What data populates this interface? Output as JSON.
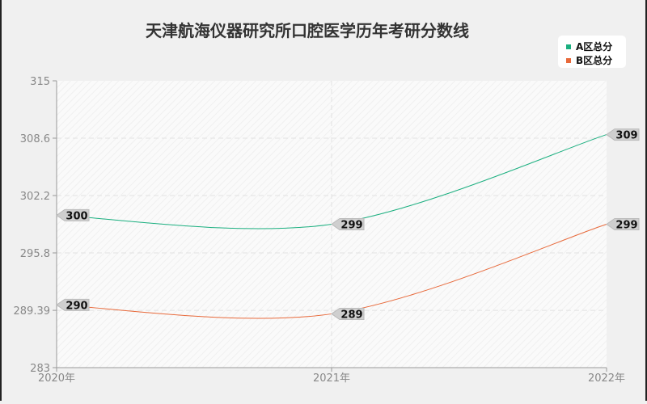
{
  "chart_data": {
    "type": "line",
    "title": "天津航海仪器研究所口腔医学历年考研分数线",
    "categories": [
      "2020年",
      "2021年",
      "2022年"
    ],
    "series": [
      {
        "name": "A区总分",
        "values": [
          300,
          299,
          309
        ],
        "color": "#1aaf7f"
      },
      {
        "name": "B区总分",
        "values": [
          290,
          289,
          299
        ],
        "color": "#e8693a"
      }
    ],
    "ylim": [
      283,
      315
    ],
    "yticks": [
      "315",
      "308.6",
      "302.2",
      "295.8",
      "289.39",
      "283"
    ],
    "grid": true,
    "legend": "top-right",
    "smooth": true
  }
}
